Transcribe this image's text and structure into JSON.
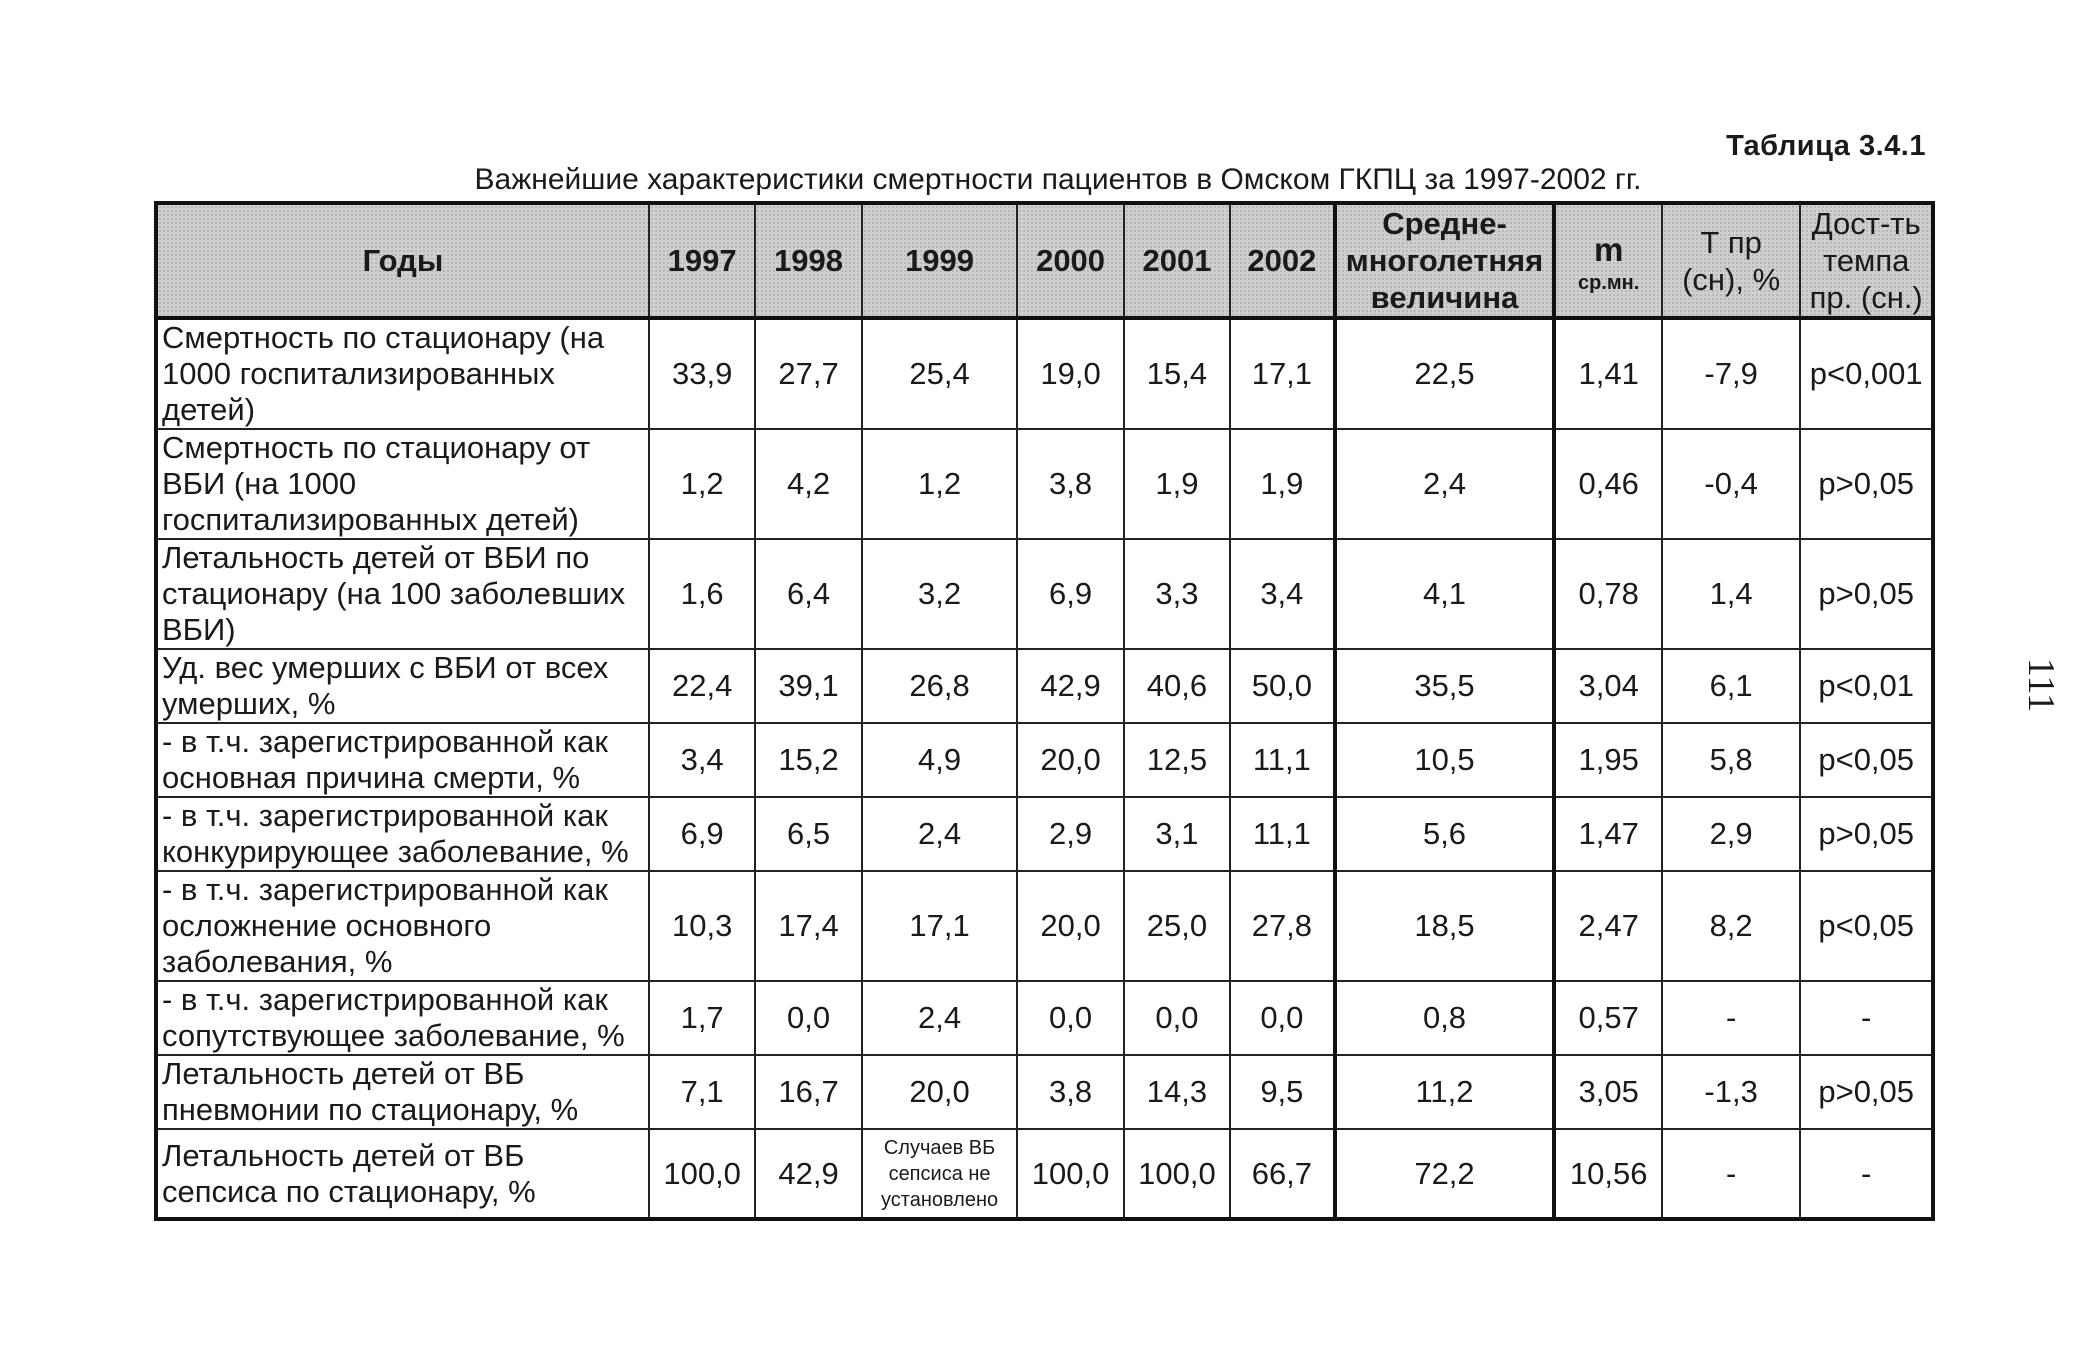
{
  "table_number": "Таблица 3.4.1",
  "caption": "Важнейшие характеристики смертности пациентов в Омском ГКПЦ за 1997-2002 гг.",
  "page_number": "111",
  "header": {
    "label": "Годы",
    "y1997": "1997",
    "y1998": "1998",
    "y1999": "1999",
    "y2000": "2000",
    "y2001": "2001",
    "y2002": "2002",
    "avg_line1": "Средне-",
    "avg_line2": "многолетняя",
    "avg_line3": "величина",
    "m_main": "m",
    "m_sub": "ср.мн.",
    "t_line1": "Т пр",
    "t_line2": "(сн), %",
    "sig_line1": "Дост-ть",
    "sig_line2": "темпа",
    "sig_line3": "пр. (сн.)"
  },
  "rows": [
    {
      "label": "Смертность по стационару (на 1000 госпитализированных детей)",
      "values": [
        "33,9",
        "27,7",
        "25,4",
        "19,0",
        "15,4",
        "17,1",
        "22,5",
        "1,41",
        "-7,9",
        "p<0,001"
      ]
    },
    {
      "label": "Смертность по стационару от ВБИ (на 1000 госпитализированных детей)",
      "values": [
        "1,2",
        "4,2",
        "1,2",
        "3,8",
        "1,9",
        "1,9",
        "2,4",
        "0,46",
        "-0,4",
        "p>0,05"
      ]
    },
    {
      "label": "Летальность детей от ВБИ по стационару (на 100 заболевших ВБИ)",
      "values": [
        "1,6",
        "6,4",
        "3,2",
        "6,9",
        "3,3",
        "3,4",
        "4,1",
        "0,78",
        "1,4",
        "p>0,05"
      ]
    },
    {
      "label": "Уд. вес умерших с ВБИ от всех умерших, %",
      "values": [
        "22,4",
        "39,1",
        "26,8",
        "42,9",
        "40,6",
        "50,0",
        "35,5",
        "3,04",
        "6,1",
        "p<0,01"
      ]
    },
    {
      "label": " - в т.ч. зарегистрированной как основная причина смерти, %",
      "values": [
        "3,4",
        "15,2",
        "4,9",
        "20,0",
        "12,5",
        "11,1",
        "10,5",
        "1,95",
        "5,8",
        "p<0,05"
      ]
    },
    {
      "label": " - в т.ч. зарегистрированной как конкурирующее заболевание, %",
      "values": [
        "6,9",
        "6,5",
        "2,4",
        "2,9",
        "3,1",
        "11,1",
        "5,6",
        "1,47",
        "2,9",
        "p>0,05"
      ]
    },
    {
      "label": " - в т.ч. зарегистрированной как осложнение основного заболевания, %",
      "values": [
        "10,3",
        "17,4",
        "17,1",
        "20,0",
        "25,0",
        "27,8",
        "18,5",
        "2,47",
        "8,2",
        "p<0,05"
      ]
    },
    {
      "label": " - в т.ч. зарегистрированной как сопутствующее заболевание, %",
      "values": [
        "1,7",
        "0,0",
        "2,4",
        "0,0",
        "0,0",
        "0,0",
        "0,8",
        "0,57",
        "-",
        "-"
      ]
    },
    {
      "label": "Летальность детей от ВБ пневмонии по стационару, %",
      "values": [
        "7,1",
        "16,7",
        "20,0",
        "3,8",
        "14,3",
        "9,5",
        "11,2",
        "3,05",
        "-1,3",
        "p>0,05"
      ]
    },
    {
      "label": "Летальность детей от ВБ сепсиса по стационару, %",
      "values": [
        "100,0",
        "42,9",
        "Случаев ВБ сепсиса не установлено",
        "100,0",
        "100,0",
        "66,7",
        "72,2",
        "10,56",
        "-",
        "-"
      ]
    }
  ]
}
